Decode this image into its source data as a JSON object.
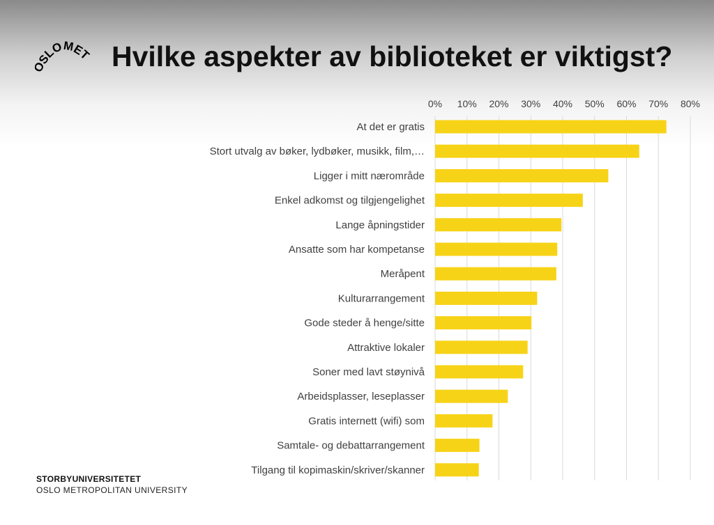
{
  "logo": {
    "text": "OSLOMET"
  },
  "title": "Hvilke aspekter av biblioteket er viktigst?",
  "footer": {
    "line1": "STORBYUNIVERSITETET",
    "line2": "OSLO METROPOLITAN UNIVERSITY"
  },
  "colors": {
    "bar": "#f7d318",
    "grid": "#d9d9d9",
    "text": "#404040"
  },
  "chart_data": {
    "type": "bar",
    "orientation": "horizontal",
    "title": "",
    "xlabel": "",
    "ylabel": "",
    "xlim": [
      0,
      80
    ],
    "ticks": [
      "0%",
      "10%",
      "20%",
      "30%",
      "40%",
      "50%",
      "60%",
      "70%",
      "80%"
    ],
    "tick_values": [
      0,
      10,
      20,
      30,
      40,
      50,
      60,
      70,
      80
    ],
    "grid": true,
    "axis_position": "top",
    "categories": [
      "At det er gratis",
      "Stort utvalg av bøker, lydbøker, musikk, film,…",
      "Ligger i mitt nærområde",
      "Enkel adkomst og tilgjengelighet",
      "Lange åpningstider",
      "Ansatte som har kompetanse",
      "Meråpent",
      "Kulturarrangement",
      "Gode steder å henge/sitte",
      "Attraktive lokaler",
      "Soner med lavt støynivå",
      "Arbeidsplasser, leseplasser",
      "Gratis internett (wifi) som",
      "Samtale- og debattarrangement",
      "Tilgang til kopimaskin/skriver/skanner"
    ],
    "values": [
      72.5,
      64,
      54.3,
      46.3,
      39.6,
      38.3,
      38,
      32,
      30.2,
      29,
      27.6,
      22.8,
      18,
      13.9,
      13.7
    ]
  }
}
